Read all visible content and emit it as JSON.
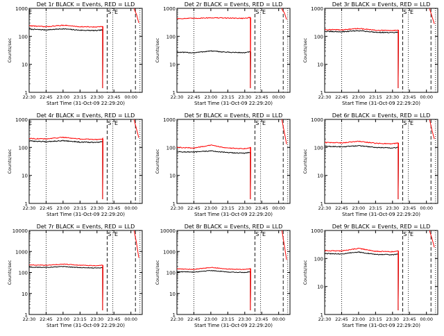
{
  "figure": {
    "xlabel": "Start Time (31-Oct-09 22:29:20)",
    "ylabel": "Counts/sec"
  },
  "chart_data": [
    {
      "type": "line",
      "title": "Det 1r BLACK = Events, RED = LLD",
      "xlabel": "Start Time (31-Oct-09 22:29:20)",
      "ylabel": "Counts/sec",
      "log_y": true,
      "ylim": [
        1,
        1000
      ],
      "xlim": [
        "22:30",
        "00:10"
      ],
      "x_ticks": [
        "22:30",
        "22:45",
        "23:00",
        "23:15",
        "23:30",
        "23:45",
        "00:00"
      ],
      "y_ticks": [
        "1",
        "10",
        "100",
        "1000"
      ],
      "markers": [
        "E",
        "S",
        "E"
      ],
      "series": [
        {
          "name": "Events",
          "color": "#000000",
          "x": [
            "22:30",
            "22:45",
            "23:00",
            "23:15",
            "23:30",
            "23:35"
          ],
          "values": [
            180,
            170,
            185,
            165,
            160,
            170
          ]
        },
        {
          "name": "LLD",
          "color": "#ff0000",
          "x": [
            "22:30",
            "22:45",
            "23:00",
            "23:15",
            "23:30",
            "23:35",
            "00:03",
            "00:05",
            "00:07"
          ],
          "values": [
            240,
            220,
            250,
            220,
            215,
            225,
            900,
            600,
            300
          ]
        }
      ]
    },
    {
      "type": "line",
      "title": "Det 2r BLACK = Events, RED = LLD",
      "xlabel": "Start Time (31-Oct-09 22:29:20)",
      "ylabel": "Counts/sec",
      "log_y": true,
      "ylim": [
        1,
        1000
      ],
      "xlim": [
        "22:30",
        "00:10"
      ],
      "x_ticks": [
        "22:30",
        "22:45",
        "23:00",
        "23:15",
        "23:30",
        "23:45",
        "00:00"
      ],
      "y_ticks": [
        "1",
        "10",
        "100",
        "1000"
      ],
      "markers": [
        "S",
        "E"
      ],
      "series": [
        {
          "name": "Events",
          "color": "#000000",
          "x": [
            "22:30",
            "22:45",
            "23:00",
            "23:15",
            "23:30",
            "23:35"
          ],
          "values": [
            27,
            26,
            30,
            27,
            26,
            28
          ]
        },
        {
          "name": "LLD",
          "color": "#ff0000",
          "x": [
            "22:30",
            "22:45",
            "23:00",
            "23:15",
            "23:30",
            "23:35",
            "00:03",
            "00:05",
            "00:07"
          ],
          "values": [
            430,
            440,
            460,
            450,
            440,
            470,
            900,
            700,
            400
          ]
        }
      ]
    },
    {
      "type": "line",
      "title": "Det 3r BLACK = Events, RED = LLD",
      "xlabel": "Start Time (31-Oct-09 22:29:20)",
      "ylabel": "Counts/sec",
      "log_y": true,
      "ylim": [
        1,
        1000
      ],
      "xlim": [
        "22:30",
        "00:10"
      ],
      "x_ticks": [
        "22:30",
        "22:45",
        "23:00",
        "23:15",
        "23:30",
        "23:45",
        "00:00"
      ],
      "y_ticks": [
        "1",
        "10",
        "100",
        "1000"
      ],
      "markers": [
        "S",
        "E"
      ],
      "series": [
        {
          "name": "Events",
          "color": "#000000",
          "x": [
            "22:30",
            "22:45",
            "23:00",
            "23:15",
            "23:30",
            "23:35"
          ],
          "values": [
            150,
            145,
            160,
            140,
            135,
            140
          ]
        },
        {
          "name": "LLD",
          "color": "#ff0000",
          "x": [
            "22:30",
            "22:45",
            "23:00",
            "23:15",
            "23:30",
            "23:35",
            "00:03",
            "00:05",
            "00:07"
          ],
          "values": [
            175,
            170,
            190,
            165,
            160,
            170,
            900,
            500,
            280
          ]
        }
      ]
    },
    {
      "type": "line",
      "title": "Det 4r BLACK = Events, RED = LLD",
      "xlabel": "Start Time (31-Oct-09 22:29:20)",
      "ylabel": "Counts/sec",
      "log_y": true,
      "ylim": [
        1,
        1000
      ],
      "xlim": [
        "22:30",
        "00:10"
      ],
      "x_ticks": [
        "22:30",
        "22:45",
        "23:00",
        "23:15",
        "23:30",
        "23:45",
        "00:00"
      ],
      "y_ticks": [
        "1",
        "10",
        "100",
        "1000"
      ],
      "markers": [
        "E",
        "S",
        "E"
      ],
      "series": [
        {
          "name": "Events",
          "color": "#000000",
          "x": [
            "22:30",
            "22:45",
            "23:00",
            "23:15",
            "23:30",
            "23:35"
          ],
          "values": [
            170,
            160,
            175,
            155,
            150,
            160
          ]
        },
        {
          "name": "LLD",
          "color": "#ff0000",
          "x": [
            "22:30",
            "22:45",
            "23:00",
            "23:15",
            "23:30",
            "23:35",
            "00:03",
            "00:05",
            "00:07"
          ],
          "values": [
            210,
            200,
            230,
            200,
            190,
            205,
            900,
            450,
            220
          ]
        }
      ]
    },
    {
      "type": "line",
      "title": "Det 5r BLACK = Events, RED = LLD",
      "xlabel": "Start Time (31-Oct-09 22:29:20)",
      "ylabel": "Counts/sec",
      "log_y": true,
      "ylim": [
        1,
        1000
      ],
      "xlim": [
        "22:30",
        "00:10"
      ],
      "x_ticks": [
        "22:30",
        "22:45",
        "23:00",
        "23:15",
        "23:30",
        "23:45",
        "00:00"
      ],
      "y_ticks": [
        "1",
        "10",
        "100",
        "1000"
      ],
      "markers": [
        "S",
        "E"
      ],
      "series": [
        {
          "name": "Events",
          "color": "#000000",
          "x": [
            "22:30",
            "22:45",
            "23:00",
            "23:15",
            "23:30",
            "23:35"
          ],
          "values": [
            70,
            68,
            75,
            65,
            62,
            66
          ]
        },
        {
          "name": "LLD",
          "color": "#ff0000",
          "x": [
            "22:30",
            "22:45",
            "23:00",
            "23:15",
            "23:30",
            "23:35",
            "00:03",
            "00:05",
            "00:07"
          ],
          "values": [
            100,
            95,
            120,
            95,
            90,
            100,
            900,
            350,
            130
          ]
        }
      ]
    },
    {
      "type": "line",
      "title": "Det 6r BLACK = Events, RED = LLD",
      "xlabel": "Start Time (31-Oct-09 22:29:20)",
      "ylabel": "Counts/sec",
      "log_y": true,
      "ylim": [
        1,
        1000
      ],
      "xlim": [
        "22:30",
        "00:10"
      ],
      "x_ticks": [
        "22:30",
        "22:45",
        "23:00",
        "23:15",
        "23:30",
        "23:45",
        "00:00"
      ],
      "y_ticks": [
        "1",
        "10",
        "100",
        "1000"
      ],
      "markers": [
        "S",
        "E"
      ],
      "series": [
        {
          "name": "Events",
          "color": "#000000",
          "x": [
            "22:30",
            "22:45",
            "23:00",
            "23:15",
            "23:30",
            "23:35"
          ],
          "values": [
            110,
            105,
            115,
            100,
            95,
            100
          ]
        },
        {
          "name": "LLD",
          "color": "#ff0000",
          "x": [
            "22:30",
            "22:45",
            "23:00",
            "23:15",
            "23:30",
            "23:35",
            "00:03",
            "00:05",
            "00:07"
          ],
          "values": [
            150,
            145,
            165,
            140,
            135,
            145,
            900,
            400,
            200
          ]
        }
      ]
    },
    {
      "type": "line",
      "title": "Det 7r BLACK = Events, RED = LLD",
      "xlabel": "Start Time (31-Oct-09 22:29:20)",
      "ylabel": "Counts/sec",
      "log_y": true,
      "ylim": [
        1,
        10000
      ],
      "xlim": [
        "22:30",
        "00:10"
      ],
      "x_ticks": [
        "22:30",
        "22:45",
        "23:00",
        "23:15",
        "23:30",
        "23:45",
        "00:00"
      ],
      "y_ticks": [
        "1",
        "10",
        "100",
        "1000",
        "10000"
      ],
      "markers": [
        "S",
        "E"
      ],
      "series": [
        {
          "name": "Events",
          "color": "#000000",
          "x": [
            "22:30",
            "22:45",
            "23:00",
            "23:15",
            "23:30",
            "23:35"
          ],
          "values": [
            180,
            175,
            190,
            170,
            165,
            170
          ]
        },
        {
          "name": "LLD",
          "color": "#ff0000",
          "x": [
            "22:30",
            "22:45",
            "23:00",
            "23:15",
            "23:30",
            "23:35",
            "00:03",
            "00:05",
            "00:07"
          ],
          "values": [
            230,
            220,
            250,
            220,
            210,
            225,
            9000,
            2500,
            500
          ]
        }
      ]
    },
    {
      "type": "line",
      "title": "Det 8r BLACK = Events, RED = LLD",
      "xlabel": "Start Time (31-Oct-09 22:29:20)",
      "ylabel": "Counts/sec",
      "log_y": true,
      "ylim": [
        1,
        10000
      ],
      "xlim": [
        "22:30",
        "00:10"
      ],
      "x_ticks": [
        "22:30",
        "22:45",
        "23:00",
        "23:15",
        "23:30",
        "23:45",
        "00:00"
      ],
      "y_ticks": [
        "1",
        "10",
        "100",
        "1000",
        "10000"
      ],
      "markers": [
        "S",
        "E"
      ],
      "series": [
        {
          "name": "Events",
          "color": "#000000",
          "x": [
            "22:30",
            "22:45",
            "23:00",
            "23:15",
            "23:30",
            "23:35"
          ],
          "values": [
            110,
            105,
            125,
            105,
            100,
            110
          ]
        },
        {
          "name": "LLD",
          "color": "#ff0000",
          "x": [
            "22:30",
            "22:45",
            "23:00",
            "23:15",
            "23:30",
            "23:35",
            "00:03",
            "00:05",
            "00:07"
          ],
          "values": [
            150,
            140,
            175,
            145,
            140,
            150,
            9000,
            2000,
            400
          ]
        }
      ]
    },
    {
      "type": "line",
      "title": "Det 9r BLACK = Events, RED = LLD",
      "xlabel": "Start Time (31-Oct-09 22:29:20)",
      "ylabel": "Counts/sec",
      "log_y": true,
      "ylim": [
        1,
        1000
      ],
      "xlim": [
        "22:30",
        "00:10"
      ],
      "x_ticks": [
        "22:30",
        "22:45",
        "23:00",
        "23:15",
        "23:30",
        "23:45",
        "00:00"
      ],
      "y_ticks": [
        "1",
        "10",
        "100",
        "1000"
      ],
      "markers": [
        "S",
        "E"
      ],
      "series": [
        {
          "name": "Events",
          "color": "#000000",
          "x": [
            "22:30",
            "22:45",
            "23:00",
            "23:15",
            "23:30",
            "23:35"
          ],
          "values": [
            150,
            145,
            170,
            140,
            135,
            145
          ]
        },
        {
          "name": "LLD",
          "color": "#ff0000",
          "x": [
            "22:30",
            "22:45",
            "23:00",
            "23:15",
            "23:30",
            "23:35",
            "00:03",
            "00:05",
            "00:07"
          ],
          "values": [
            190,
            185,
            230,
            180,
            175,
            185,
            900,
            500,
            250
          ]
        }
      ]
    }
  ]
}
